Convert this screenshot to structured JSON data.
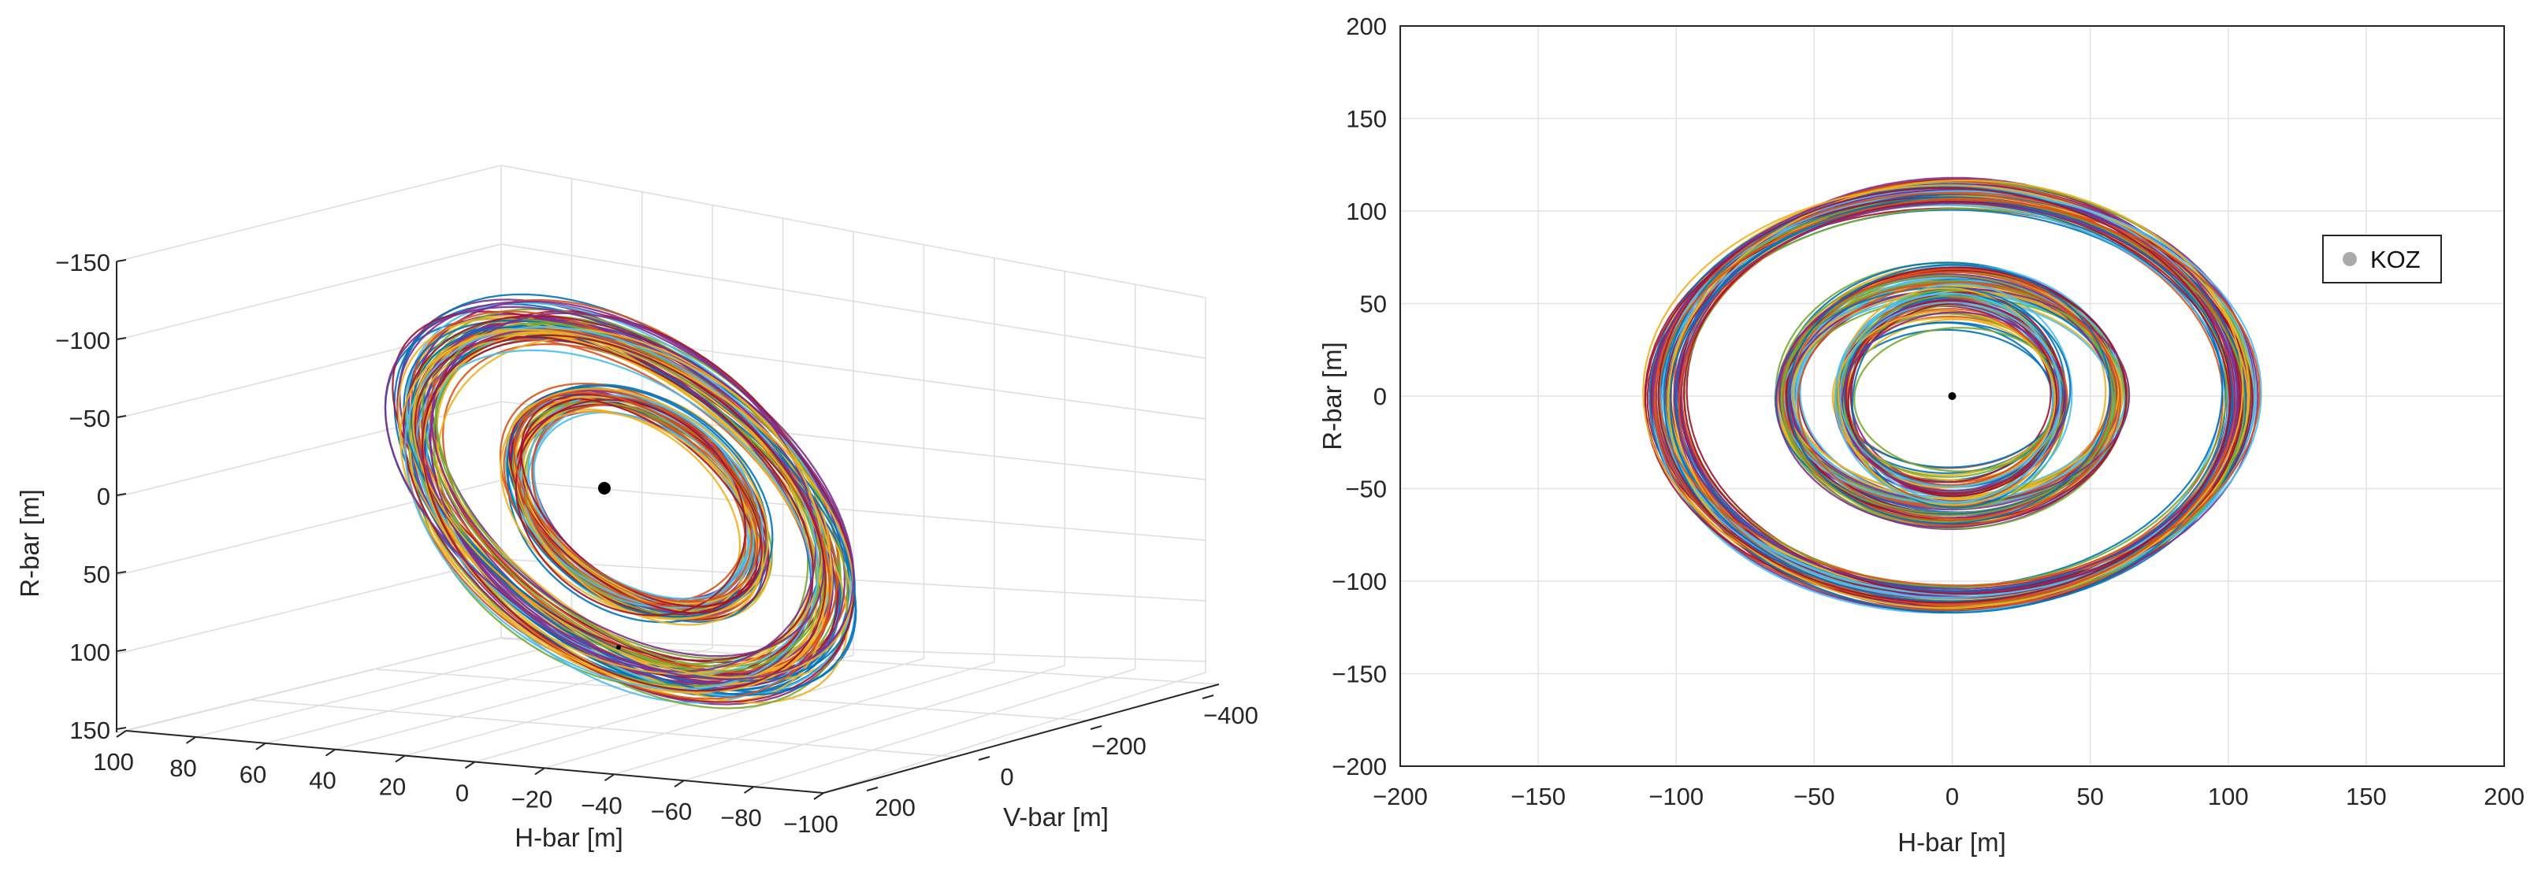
{
  "chart_data": [
    {
      "type": "line",
      "projection": "3d",
      "xlabel": "H-bar [m]",
      "ylabel": "V-bar [m]",
      "zlabel": "R-bar [m]",
      "xlim": [
        100,
        -100
      ],
      "ylim": [
        200,
        -400
      ],
      "zlim": [
        -150,
        150
      ],
      "xticks": [
        "100",
        "80",
        "60",
        "40",
        "20",
        "0",
        "−20",
        "−40",
        "−60",
        "−80",
        "−100"
      ],
      "yticks": [
        "200",
        "0",
        "−200",
        "−400"
      ],
      "zticks": [
        "−150",
        "−100",
        "−50",
        "0",
        "50",
        "100",
        "150"
      ],
      "grid": true,
      "colors": [
        "#0072BD",
        "#D95319",
        "#EDB120",
        "#7E2F8E",
        "#77AC30",
        "#4DBEEE",
        "#A2142F"
      ],
      "series_description_values": {
        "outer_ring_radius_m": [
          100,
          112
        ],
        "inner_ring_radius_m": [
          50,
          65
        ],
        "center": [
          0,
          0,
          0
        ]
      }
    },
    {
      "type": "line",
      "title": "",
      "xlabel": "H-bar [m]",
      "ylabel": "R-bar [m]",
      "xlim": [
        -200,
        200
      ],
      "ylim": [
        -200,
        200
      ],
      "xticks": [
        "−200",
        "−150",
        "−100",
        "−50",
        "0",
        "50",
        "100",
        "150",
        "200"
      ],
      "yticks": [
        "200",
        "150",
        "100",
        "50",
        "0",
        "−50",
        "−100",
        "−150",
        "−200"
      ],
      "grid": true,
      "legend": {
        "position": "right",
        "entries": [
          {
            "name": "KOZ",
            "color": "#aaaaaa"
          }
        ]
      },
      "colors": [
        "#0072BD",
        "#D95319",
        "#EDB120",
        "#7E2F8E",
        "#77AC30",
        "#4DBEEE",
        "#A2142F"
      ],
      "ellipse_families": [
        {
          "family": "outer",
          "semi_axis_h": [
            98,
            110
          ],
          "semi_axis_r": [
            103,
            117
          ]
        },
        {
          "family": "middle",
          "semi_axis_h": [
            58,
            62
          ],
          "semi_axis_r": [
            55,
            72
          ]
        },
        {
          "family": "inner",
          "semi_axis_h": [
            38,
            41
          ],
          "semi_axis_r": [
            38,
            60
          ]
        }
      ],
      "center_point": [
        0,
        0
      ]
    }
  ]
}
